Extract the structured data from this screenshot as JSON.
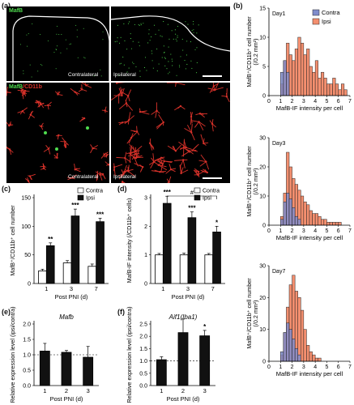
{
  "panels": {
    "a": "(a)",
    "b": "(b)",
    "c": "(c)",
    "d": "(d)",
    "e": "(e)",
    "f": "(f)"
  },
  "micrographs": {
    "top_stain": "MafB",
    "bottom_stain_a": "MafB",
    "bottom_stain_b": "/CD11b",
    "contralateral": "Contralateral",
    "ipsilateral": "Ipsilateral",
    "colors": {
      "green": "#4fdc4f",
      "red": "#d8322a",
      "outline": "#ffffff"
    }
  },
  "histograms": {
    "legend": [
      {
        "name": "Contra",
        "color": "#7f8ccc"
      },
      {
        "name": "Ipsi",
        "color": "#f48f6f"
      }
    ],
    "ylabel_line1": "MafB⁺/CD11b⁺ cell number",
    "ylabel_line2": "(/0.2 mm²)",
    "xlabel": "MafB-IF intensity per cell"
  },
  "chart_data": [
    {
      "id": "b-day1",
      "type": "bar",
      "title": "Day1",
      "xlabel": "MafB-IF intensity per cell",
      "ylabel": "MafB⁺/CD11b⁺ cell number (/0.2 mm²)",
      "xlim": [
        0,
        7
      ],
      "ylim": [
        0,
        15
      ],
      "xticks": [
        0,
        1,
        2,
        3,
        4,
        5,
        6,
        7
      ],
      "yticks": [
        0,
        5,
        10,
        15
      ],
      "bin_width": 0.25,
      "series": [
        {
          "name": "Contra",
          "color": "#7f8ccc",
          "bins_start": 1.0,
          "values": [
            4,
            6,
            4
          ]
        },
        {
          "name": "Ipsi",
          "color": "#f48f6f",
          "bins_start": 1.0,
          "values": [
            2,
            6,
            9,
            7,
            6,
            8,
            10,
            9,
            7,
            8,
            5,
            4,
            6,
            3,
            4,
            3,
            2,
            2,
            3,
            2,
            1,
            2,
            1
          ]
        }
      ]
    },
    {
      "id": "b-day3",
      "type": "bar",
      "title": "Day3",
      "xlabel": "MafB-IF intensity per cell",
      "ylabel": "MafB⁺/CD11b⁺ cell number (/0.2 mm²)",
      "xlim": [
        0,
        7
      ],
      "ylim": [
        0,
        30
      ],
      "xticks": [
        0,
        1,
        2,
        3,
        4,
        5,
        6,
        7
      ],
      "yticks": [
        0,
        10,
        20,
        30
      ],
      "bin_width": 0.25,
      "series": [
        {
          "name": "Contra",
          "color": "#7f8ccc",
          "bins_start": 1.0,
          "values": [
            2,
            8,
            11,
            9,
            6,
            3,
            2
          ]
        },
        {
          "name": "Ipsi",
          "color": "#f48f6f",
          "bins_start": 1.0,
          "values": [
            3,
            11,
            25,
            20,
            16,
            14,
            12,
            10,
            8,
            7,
            5,
            4,
            4,
            3,
            2,
            2,
            1,
            1,
            1,
            1,
            1
          ]
        }
      ]
    },
    {
      "id": "b-day7",
      "type": "bar",
      "title": "Day7",
      "xlabel": "MafB-IF intensity per cell",
      "ylabel": "MafB⁺/CD11b⁺ cell number (/0.2 mm²)",
      "xlim": [
        0,
        7
      ],
      "ylim": [
        0,
        30
      ],
      "xticks": [
        0,
        1,
        2,
        3,
        4,
        5,
        6,
        7
      ],
      "yticks": [
        0,
        10,
        20,
        30
      ],
      "bin_width": 0.25,
      "series": [
        {
          "name": "Contra",
          "color": "#7f8ccc",
          "bins_start": 1.0,
          "values": [
            3,
            9,
            12,
            10,
            7,
            4,
            2
          ]
        },
        {
          "name": "Ipsi",
          "color": "#f48f6f",
          "bins_start": 1.0,
          "values": [
            2,
            9,
            17,
            24,
            27,
            22,
            20,
            16,
            10,
            5,
            3,
            2,
            1,
            1
          ]
        }
      ]
    },
    {
      "id": "c",
      "type": "bar",
      "ylabel": "MafB⁺/CD11b⁺ cell number",
      "xlabel": "Post PNI (d)",
      "categories": [
        "1",
        "3",
        "7"
      ],
      "ylim": [
        0,
        150
      ],
      "yticks": [
        0,
        50,
        100,
        150
      ],
      "legend": [
        "Contra",
        "Ipsi"
      ],
      "series": [
        {
          "name": "Contra",
          "values": [
            22,
            36,
            30
          ],
          "err": [
            3,
            4,
            4
          ]
        },
        {
          "name": "Ipsi",
          "values": [
            66,
            118,
            108
          ],
          "err": [
            5,
            12,
            6
          ]
        }
      ],
      "significance": [
        "**",
        "***",
        "***"
      ]
    },
    {
      "id": "d",
      "type": "bar",
      "ylabel": "MafB-IF intensity (/CD11b⁺ cells)",
      "xlabel": "Post PNI (d)",
      "categories": [
        "1",
        "3",
        "7"
      ],
      "ylim": [
        0,
        3
      ],
      "yticks": [
        0,
        1,
        2,
        3
      ],
      "legend": [
        "Contra",
        "Ipsi"
      ],
      "series": [
        {
          "name": "Contra",
          "values": [
            1.0,
            1.0,
            1.0
          ],
          "err": [
            0.05,
            0.06,
            0.05
          ]
        },
        {
          "name": "Ipsi",
          "values": [
            2.8,
            2.3,
            1.8
          ],
          "err": [
            0.25,
            0.2,
            0.2
          ]
        }
      ],
      "significance": [
        "***",
        "***",
        "*"
      ],
      "bracket": "#"
    },
    {
      "id": "e",
      "type": "bar",
      "title": "Mafb",
      "ylabel": "Relative expression level (ipsi/contra)",
      "xlabel": "Post PNI (d)",
      "categories": [
        "1",
        "2",
        "3"
      ],
      "ylim": [
        0,
        2.0
      ],
      "yticks": [
        0,
        0.5,
        1.0,
        1.5,
        2.0
      ],
      "reference_line": 1.0,
      "series": [
        {
          "values": [
            1.12,
            1.08,
            0.92
          ],
          "err": [
            0.25,
            0.06,
            0.35
          ]
        }
      ]
    },
    {
      "id": "f",
      "type": "bar",
      "title": "Aif1(Iba1)",
      "ylabel": "Relative expression level (ipsi/contra)",
      "xlabel": "Post PNI (d)",
      "categories": [
        "1",
        "2",
        "3"
      ],
      "ylim": [
        0,
        2.5
      ],
      "yticks": [
        0,
        0.5,
        1.0,
        1.5,
        2.0,
        2.5
      ],
      "reference_line": 1.0,
      "series": [
        {
          "values": [
            1.05,
            2.15,
            2.02
          ],
          "err": [
            0.12,
            0.55,
            0.22
          ]
        }
      ],
      "significance": [
        "",
        "",
        "*"
      ]
    }
  ]
}
